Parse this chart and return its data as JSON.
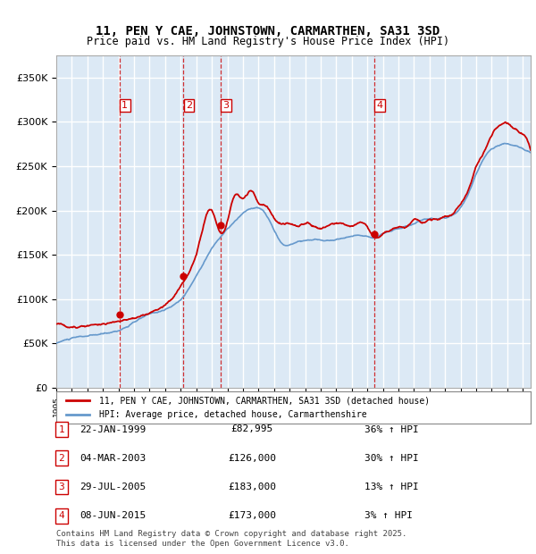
{
  "title_line1": "11, PEN Y CAE, JOHNSTOWN, CARMARTHEN, SA31 3SD",
  "title_line2": "Price paid vs. HM Land Registry's House Price Index (HPI)",
  "background_color": "#ffffff",
  "chart_bg_color": "#dce9f5",
  "grid_color": "#ffffff",
  "ylabel": "",
  "xlabel": "",
  "ylim": [
    0,
    375000
  ],
  "yticks": [
    0,
    50000,
    100000,
    150000,
    200000,
    250000,
    300000,
    350000
  ],
  "ytick_labels": [
    "£0",
    "£50K",
    "£100K",
    "£150K",
    "£200K",
    "£250K",
    "£300K",
    "£350K"
  ],
  "sale_color": "#cc0000",
  "hpi_color": "#6699cc",
  "sale_label": "11, PEN Y CAE, JOHNSTOWN, CARMARTHEN, SA31 3SD (detached house)",
  "hpi_label": "HPI: Average price, detached house, Carmarthenshire",
  "transactions": [
    {
      "num": 1,
      "date": "22-JAN-1999",
      "price": 82995,
      "pct": "36%",
      "dir": "↑",
      "x_year": 1999.06
    },
    {
      "num": 2,
      "date": "04-MAR-2003",
      "price": 126000,
      "pct": "30%",
      "dir": "↑",
      "x_year": 2003.17
    },
    {
      "num": 3,
      "date": "29-JUL-2005",
      "price": 183000,
      "pct": "13%",
      "dir": "↑",
      "x_year": 2005.57
    },
    {
      "num": 4,
      "date": "08-JUN-2015",
      "price": 173000,
      "pct": "3%",
      "dir": "↑",
      "x_year": 2015.44
    }
  ],
  "footnote": "Contains HM Land Registry data © Crown copyright and database right 2025.\nThis data is licensed under the Open Government Licence v3.0.",
  "xmin": 1995.0,
  "xmax": 2025.5
}
